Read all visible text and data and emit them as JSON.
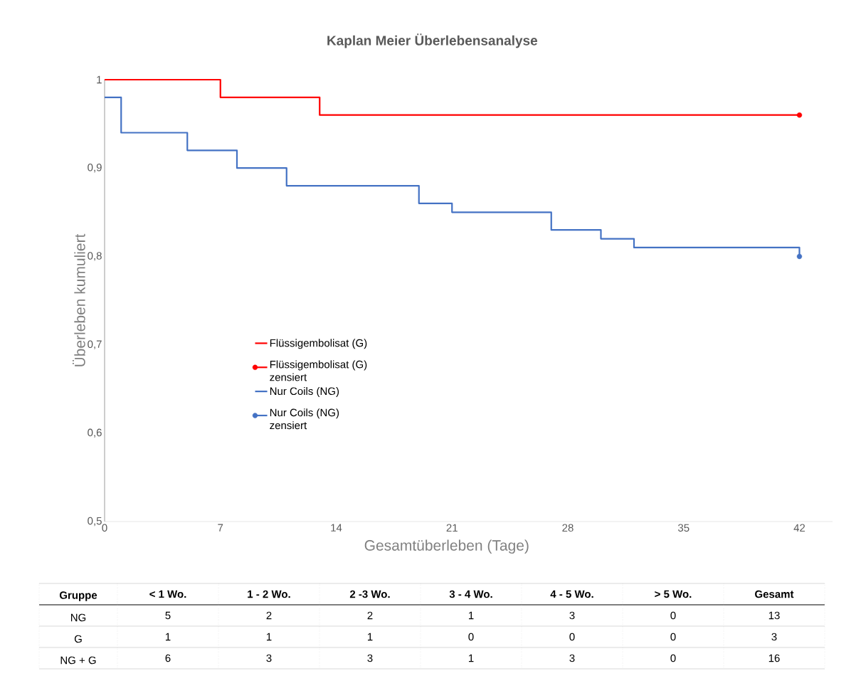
{
  "chart_data": [
    {
      "type": "step",
      "title": "Kaplan Meier Überlebensanalyse",
      "xlabel": "Gesamtüberleben (Tage)",
      "ylabel": "Überleben kumuliert",
      "xlim": [
        0,
        44
      ],
      "xticks": [
        0,
        7,
        14,
        21,
        28,
        35,
        42
      ],
      "ylim": [
        0.5,
        1
      ],
      "yticks": [
        {
          "value": 0.5,
          "label": "0,5"
        },
        {
          "value": 0.6,
          "label": "0,6"
        },
        {
          "value": 0.7,
          "label": "0,7"
        },
        {
          "value": 0.8,
          "label": "0,8"
        },
        {
          "value": 0.9,
          "label": "0,9"
        },
        {
          "value": 1,
          "label": "1"
        }
      ],
      "legend": "bottom left",
      "series": [
        {
          "name": "Flüssigembolisat (G)",
          "type": "step",
          "color": "#ff0000",
          "marker": "none",
          "x": [
            0,
            7,
            13,
            42
          ],
          "values": [
            1,
            0.98,
            0.96,
            0.96
          ]
        },
        {
          "name": "Flüssigembolisat (G) zensiert",
          "type": "scatter",
          "color": "#ff0000",
          "marker": "circle",
          "x": [
            42
          ],
          "values": [
            0.96
          ]
        },
        {
          "name": "Nur Coils (NG)",
          "type": "step",
          "color": "#4472c4",
          "marker": "none",
          "x": [
            0,
            1,
            5,
            8,
            11,
            19,
            21,
            27,
            30,
            32,
            42
          ],
          "values": [
            0.98,
            0.94,
            0.92,
            0.9,
            0.88,
            0.86,
            0.85,
            0.83,
            0.82,
            0.81,
            0.8
          ]
        },
        {
          "name": "Nur Coils (NG) zensiert",
          "type": "scatter",
          "color": "#4472c4",
          "marker": "circle",
          "x": [
            42
          ],
          "values": [
            0.8
          ]
        }
      ]
    },
    {
      "type": "heatmap",
      "ylabel": "Gruppe",
      "data_labels": true,
      "categories": [
        "< 1 Wo.",
        "1 - 2 Wo.",
        "2 -3 Wo.",
        "3 - 4 Wo.",
        "4 - 5 Wo.",
        "> 5 Wo.",
        "Gesamt"
      ],
      "y_categories": [
        "NG",
        "G",
        "NG + G"
      ],
      "cells": [
        [
          5,
          2,
          2,
          1,
          3,
          0,
          13
        ],
        [
          1,
          1,
          1,
          0,
          0,
          0,
          3
        ],
        [
          6,
          3,
          3,
          1,
          3,
          0,
          16
        ]
      ]
    }
  ]
}
